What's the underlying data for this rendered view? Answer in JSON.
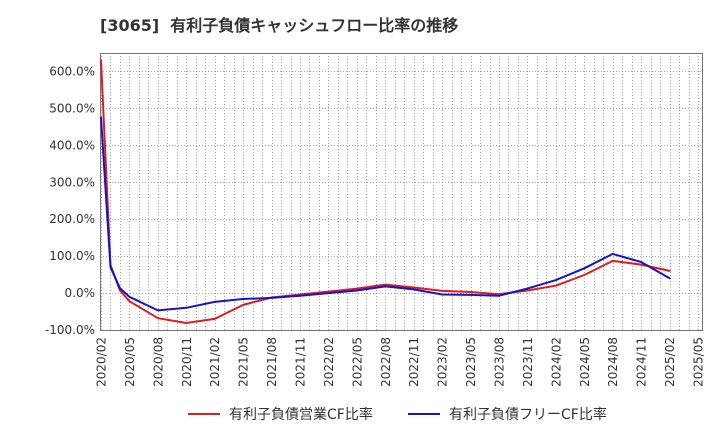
{
  "chart_data": {
    "type": "line",
    "title": "[3065]  有利子負債キャッシュフロー比率の推移",
    "xlabel": "",
    "ylabel": "",
    "ylim": [
      -100,
      650
    ],
    "y_ticks": [
      600,
      500,
      400,
      300,
      200,
      100,
      0,
      -100
    ],
    "y_tick_labels": [
      "600.0%",
      "500.0%",
      "400.0%",
      "300.0%",
      "200.0%",
      "100.0%",
      "0.0%",
      "-100.0%"
    ],
    "x_tick_labels": [
      "2020/02",
      "2020/05",
      "2020/08",
      "2020/11",
      "2021/02",
      "2021/05",
      "2021/08",
      "2021/11",
      "2022/02",
      "2022/05",
      "2022/08",
      "2022/11",
      "2023/02",
      "2023/05",
      "2023/08",
      "2023/11",
      "2024/02",
      "2024/05",
      "2024/08",
      "2024/11",
      "2025/02",
      "2025/05"
    ],
    "x": [
      [
        2020,
        2
      ],
      [
        2020,
        3
      ],
      [
        2020,
        4
      ],
      [
        2020,
        5
      ],
      [
        2020,
        8
      ],
      [
        2020,
        11
      ],
      [
        2021,
        2
      ],
      [
        2021,
        5
      ],
      [
        2021,
        8
      ],
      [
        2021,
        11
      ],
      [
        2022,
        2
      ],
      [
        2022,
        5
      ],
      [
        2022,
        8
      ],
      [
        2022,
        11
      ],
      [
        2023,
        2
      ],
      [
        2023,
        5
      ],
      [
        2023,
        8
      ],
      [
        2023,
        11
      ],
      [
        2024,
        2
      ],
      [
        2024,
        5
      ],
      [
        2024,
        8
      ],
      [
        2024,
        11
      ],
      [
        2025,
        2
      ]
    ],
    "series": [
      {
        "name": "有利子負債営業CF比率",
        "color": "#e31a1c",
        "values": [
          630,
          76,
          7,
          -22,
          -68,
          -81,
          -70,
          -32,
          -12,
          -4,
          4,
          12,
          23,
          15,
          6,
          3,
          -3,
          7,
          20,
          49,
          87,
          77,
          60
        ]
      },
      {
        "name": "有利子負債フリーCF比率",
        "color": "#1515c8",
        "values": [
          475,
          70,
          13,
          -10,
          -47,
          -40,
          -24,
          -16,
          -13,
          -7,
          0,
          7,
          18,
          10,
          -4,
          -5,
          -7,
          12,
          35,
          67,
          106,
          84,
          40
        ]
      }
    ],
    "grid": true,
    "legend_position": "bottom"
  }
}
